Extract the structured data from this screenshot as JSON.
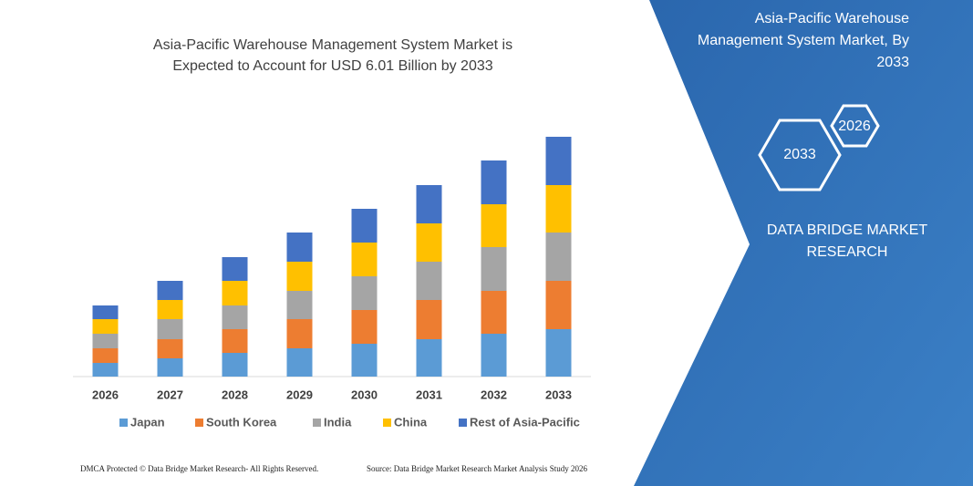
{
  "chart_data": {
    "type": "stacked_bar",
    "title": [
      "Asia-Pacific Warehouse Management System Market is",
      "Expected to Account for USD 6.01 Billion by 2033"
    ],
    "categories": [
      "2026",
      "2027",
      "2028",
      "2029",
      "2030",
      "2031",
      "2032",
      "2033"
    ],
    "series": [
      {
        "name": "Japan",
        "color": "#5b9bd5",
        "values": [
          15,
          20,
          26,
          31,
          36,
          41,
          47,
          52
        ]
      },
      {
        "name": "South Korea",
        "color": "#ed7d31",
        "values": [
          16,
          21,
          26,
          32,
          37,
          43,
          47,
          53
        ]
      },
      {
        "name": "India",
        "color": "#a5a5a5",
        "values": [
          16,
          22,
          26,
          31,
          37,
          42,
          48,
          53
        ]
      },
      {
        "name": "China",
        "color": "#ffc000",
        "values": [
          16,
          21,
          27,
          32,
          37,
          42,
          47,
          52
        ]
      },
      {
        "name": "Rest of Asia-Pacific",
        "color": "#4472c4",
        "values": [
          15,
          21,
          26,
          32,
          37,
          42,
          48,
          53
        ]
      }
    ],
    "legend": "bottom",
    "panel_title": [
      "Asia-Pacific Warehouse",
      "Management System Market, By",
      "2033"
    ],
    "hexagons": [
      "2026",
      "2033"
    ],
    "brand": [
      "DATA BRIDGE MARKET",
      "RESEARCH"
    ],
    "footer": [
      "DMCA Protected © Data Bridge Market Research- All Rights Reserved.",
      "Source: Data Bridge Market Research Market Analysis Study 2026"
    ]
  }
}
